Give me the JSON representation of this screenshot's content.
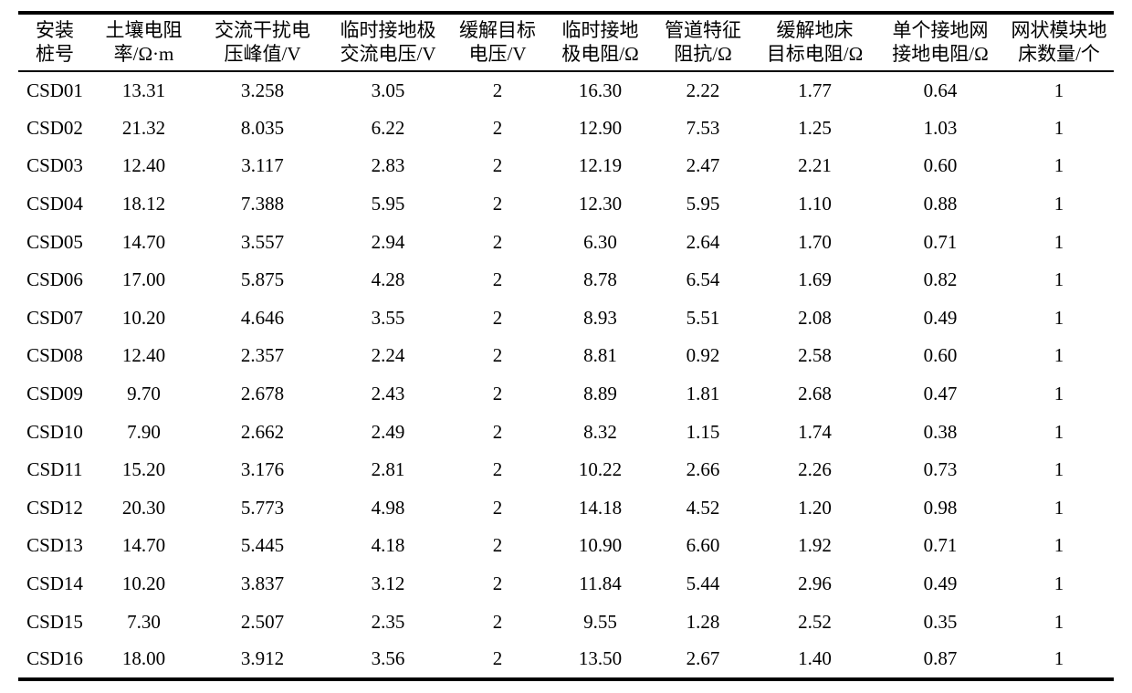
{
  "page": {
    "background_color": "#ffffff",
    "text_color": "#000000",
    "rule_color": "#000000"
  },
  "table": {
    "columns": [
      {
        "name": "pile-number",
        "lines": [
          "安装",
          "桩号"
        ]
      },
      {
        "name": "soil-resistivity",
        "lines": [
          "土壤电阻",
          "率/Ω·m"
        ]
      },
      {
        "name": "ac-interference-peak-voltage",
        "lines": [
          "交流干扰电",
          "压峰值/V"
        ]
      },
      {
        "name": "temporary-ground-electrode-ac-voltage",
        "lines": [
          "临时接地极",
          "交流电压/V"
        ]
      },
      {
        "name": "mitigation-target-voltage",
        "lines": [
          "缓解目标",
          "电压/V"
        ]
      },
      {
        "name": "temporary-ground-electrode-resistance",
        "lines": [
          "临时接地",
          "极电阻/Ω"
        ]
      },
      {
        "name": "pipeline-characteristic-impedance",
        "lines": [
          "管道特征",
          "阻抗/Ω"
        ]
      },
      {
        "name": "mitigation-ground-bed-target-resistance",
        "lines": [
          "缓解地床",
          "目标电阻/Ω"
        ]
      },
      {
        "name": "single-grounding-grid-resistance",
        "lines": [
          "单个接地网",
          "接地电阻/Ω"
        ]
      },
      {
        "name": "mesh-module-ground-bed-count",
        "lines": [
          "网状模块地",
          "床数量/个"
        ]
      }
    ],
    "rows": [
      [
        "CSD01",
        "13.31",
        "3.258",
        "3.05",
        "2",
        "16.30",
        "2.22",
        "1.77",
        "0.64",
        "1"
      ],
      [
        "CSD02",
        "21.32",
        "8.035",
        "6.22",
        "2",
        "12.90",
        "7.53",
        "1.25",
        "1.03",
        "1"
      ],
      [
        "CSD03",
        "12.40",
        "3.117",
        "2.83",
        "2",
        "12.19",
        "2.47",
        "2.21",
        "0.60",
        "1"
      ],
      [
        "CSD04",
        "18.12",
        "7.388",
        "5.95",
        "2",
        "12.30",
        "5.95",
        "1.10",
        "0.88",
        "1"
      ],
      [
        "CSD05",
        "14.70",
        "3.557",
        "2.94",
        "2",
        "6.30",
        "2.64",
        "1.70",
        "0.71",
        "1"
      ],
      [
        "CSD06",
        "17.00",
        "5.875",
        "4.28",
        "2",
        "8.78",
        "6.54",
        "1.69",
        "0.82",
        "1"
      ],
      [
        "CSD07",
        "10.20",
        "4.646",
        "3.55",
        "2",
        "8.93",
        "5.51",
        "2.08",
        "0.49",
        "1"
      ],
      [
        "CSD08",
        "12.40",
        "2.357",
        "2.24",
        "2",
        "8.81",
        "0.92",
        "2.58",
        "0.60",
        "1"
      ],
      [
        "CSD09",
        "9.70",
        "2.678",
        "2.43",
        "2",
        "8.89",
        "1.81",
        "2.68",
        "0.47",
        "1"
      ],
      [
        "CSD10",
        "7.90",
        "2.662",
        "2.49",
        "2",
        "8.32",
        "1.15",
        "1.74",
        "0.38",
        "1"
      ],
      [
        "CSD11",
        "15.20",
        "3.176",
        "2.81",
        "2",
        "10.22",
        "2.66",
        "2.26",
        "0.73",
        "1"
      ],
      [
        "CSD12",
        "20.30",
        "5.773",
        "4.98",
        "2",
        "14.18",
        "4.52",
        "1.20",
        "0.98",
        "1"
      ],
      [
        "CSD13",
        "14.70",
        "5.445",
        "4.18",
        "2",
        "10.90",
        "6.60",
        "1.92",
        "0.71",
        "1"
      ],
      [
        "CSD14",
        "10.20",
        "3.837",
        "3.12",
        "2",
        "11.84",
        "5.44",
        "2.96",
        "0.49",
        "1"
      ],
      [
        "CSD15",
        "7.30",
        "2.507",
        "2.35",
        "2",
        "9.55",
        "1.28",
        "2.52",
        "0.35",
        "1"
      ],
      [
        "CSD16",
        "18.00",
        "3.912",
        "3.56",
        "2",
        "13.50",
        "2.67",
        "1.40",
        "0.87",
        "1"
      ]
    ]
  }
}
